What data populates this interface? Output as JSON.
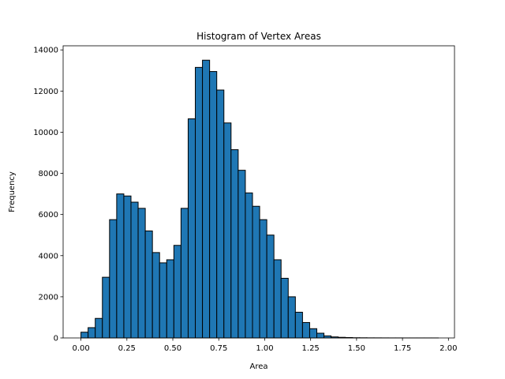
{
  "chart_data": {
    "type": "bar",
    "title": "Histogram of Vertex Areas",
    "xlabel": "Area",
    "ylabel": "Frequency",
    "xlim": [
      -0.097,
      2.033
    ],
    "ylim": [
      0,
      14200
    ],
    "xticks": [
      0.0,
      0.25,
      0.5,
      0.75,
      1.0,
      1.25,
      1.5,
      1.75,
      2.0
    ],
    "xtick_labels": [
      "0.00",
      "0.25",
      "0.50",
      "0.75",
      "1.00",
      "1.25",
      "1.50",
      "1.75",
      "2.00"
    ],
    "yticks": [
      0,
      2000,
      4000,
      6000,
      8000,
      10000,
      12000,
      14000
    ],
    "ytick_labels": [
      "0",
      "2000",
      "4000",
      "6000",
      "8000",
      "10000",
      "12000",
      "14000"
    ],
    "grid": false,
    "bar_color": "#1f77b4",
    "edge_color": "#000000",
    "bin_start": 0.0,
    "bin_width": 0.0389,
    "values": [
      280,
      500,
      950,
      2950,
      5750,
      7000,
      6900,
      6600,
      6300,
      5200,
      4150,
      3650,
      3800,
      4500,
      6300,
      10650,
      13150,
      13500,
      12950,
      12050,
      10450,
      9150,
      8150,
      7050,
      6400,
      5750,
      5000,
      3800,
      2900,
      2000,
      1250,
      750,
      450,
      230,
      100,
      50,
      30,
      20,
      10,
      8,
      5,
      4,
      3,
      2,
      2,
      1,
      1,
      1,
      1,
      1
    ]
  }
}
